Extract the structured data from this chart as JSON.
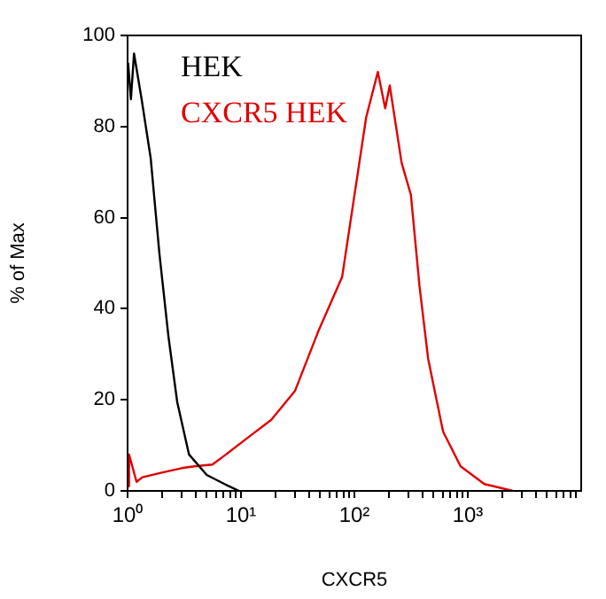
{
  "chart_data": {
    "type": "line",
    "xlabel": "CXCR5",
    "ylabel": "% of Max",
    "log": "x",
    "xlim": [
      1,
      10000
    ],
    "ylim": [
      0,
      100
    ],
    "xticks": [
      {
        "value": 1,
        "label": "10⁰"
      },
      {
        "value": 2,
        "label": null
      },
      {
        "value": 3,
        "label": null
      },
      {
        "value": 4,
        "label": null
      },
      {
        "value": 5,
        "label": null
      },
      {
        "value": 6,
        "label": null
      },
      {
        "value": 7,
        "label": null
      },
      {
        "value": 8,
        "label": null
      },
      {
        "value": 9,
        "label": null
      },
      {
        "value": 10,
        "label": "10¹"
      },
      {
        "value": 20,
        "label": null
      },
      {
        "value": 30,
        "label": null
      },
      {
        "value": 40,
        "label": null
      },
      {
        "value": 50,
        "label": null
      },
      {
        "value": 60,
        "label": null
      },
      {
        "value": 70,
        "label": null
      },
      {
        "value": 80,
        "label": null
      },
      {
        "value": 90,
        "label": null
      },
      {
        "value": 100,
        "label": "10²"
      },
      {
        "value": 200,
        "label": null
      },
      {
        "value": 300,
        "label": null
      },
      {
        "value": 400,
        "label": null
      },
      {
        "value": 500,
        "label": null
      },
      {
        "value": 600,
        "label": null
      },
      {
        "value": 700,
        "label": null
      },
      {
        "value": 800,
        "label": null
      },
      {
        "value": 900,
        "label": null
      },
      {
        "value": 1000,
        "label": "10³"
      },
      {
        "value": 2000,
        "label": null
      },
      {
        "value": 3000,
        "label": null
      },
      {
        "value": 4000,
        "label": null
      },
      {
        "value": 5000,
        "label": null
      },
      {
        "value": 6000,
        "label": null
      },
      {
        "value": 7000,
        "label": null
      },
      {
        "value": 8000,
        "label": null
      },
      {
        "value": 9000,
        "label": null
      }
    ],
    "yticks": [
      0,
      20,
      40,
      60,
      80,
      100
    ],
    "grid": false,
    "legend": "top left",
    "marker": "none",
    "line_style": "solid",
    "series": [
      {
        "name": "HEK",
        "color": "#000000",
        "x": [
          1.01,
          1.07,
          1.14,
          1.33,
          1.6,
          1.91,
          2.29,
          2.74,
          3.48,
          4.99,
          7.16,
          9.6
        ],
        "values": [
          94,
          86,
          96,
          86,
          73,
          52,
          34,
          19.5,
          8,
          3.5,
          1.5,
          0
        ]
      },
      {
        "name": "CXCR5 HEK",
        "color": "#e00000",
        "x": [
          1.0,
          1.03,
          1.2,
          1.35,
          2,
          3,
          3.9,
          5.6,
          7.2,
          11.5,
          18.5,
          30,
          48,
          78,
          127,
          161,
          187,
          205,
          261,
          315,
          375,
          447,
          606,
          864,
          1400,
          2500
        ],
        "values": [
          1,
          8,
          2,
          3,
          4,
          5,
          5.4,
          5.8,
          7.8,
          11.7,
          15.6,
          22,
          35,
          47,
          82,
          92,
          84,
          89,
          72,
          65,
          45,
          29,
          13,
          5.4,
          1.5,
          0
        ]
      }
    ]
  }
}
